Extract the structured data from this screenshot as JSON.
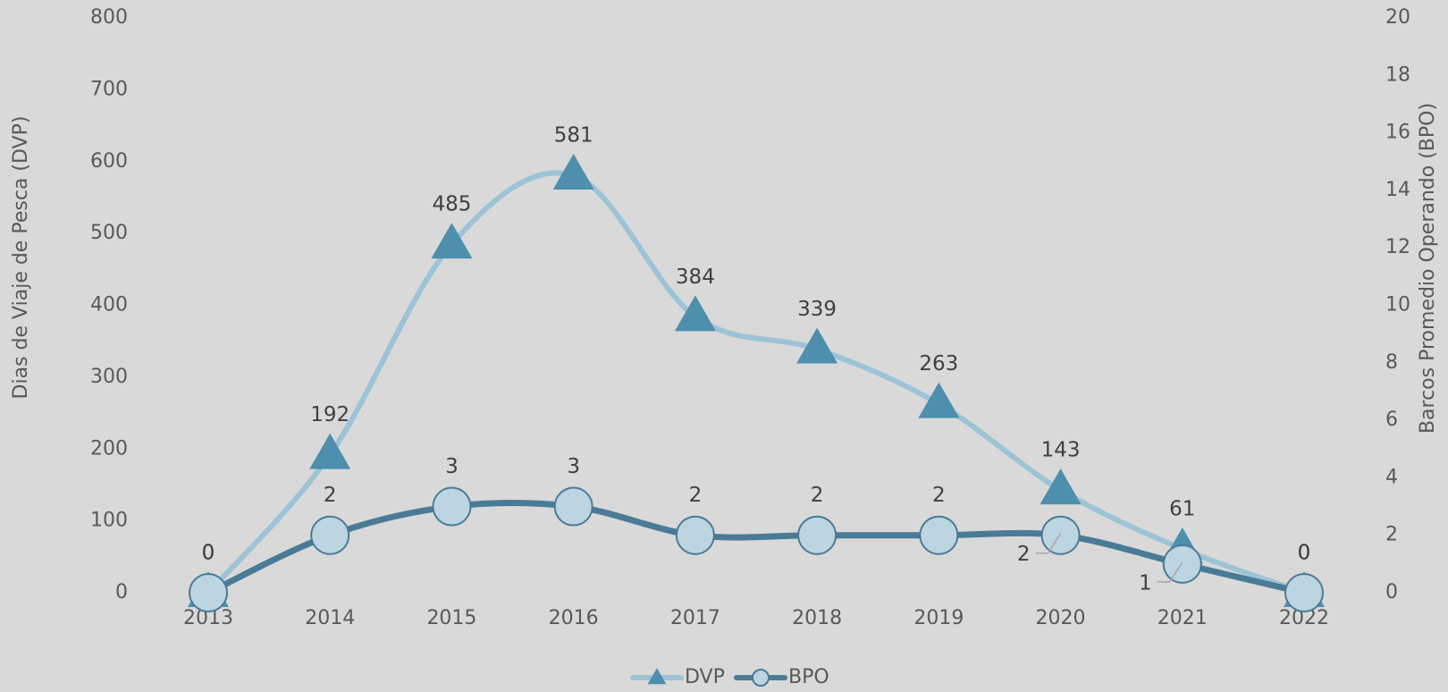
{
  "chart_data": {
    "type": "line",
    "categories": [
      "2013",
      "2014",
      "2015",
      "2016",
      "2017",
      "2018",
      "2019",
      "2020",
      "2021",
      "2022"
    ],
    "series": [
      {
        "name": "DVP",
        "color": "#9dc3d6",
        "marker_color": "#4d8fac",
        "marker": "triangle",
        "values": [
          0,
          192,
          485,
          581,
          384,
          339,
          263,
          143,
          61,
          0
        ]
      },
      {
        "name": "BPO",
        "color": "#4a7b96",
        "marker_color": "#bcd5e0",
        "marker": "circle",
        "axis": "y2",
        "values": [
          0,
          2,
          3,
          3,
          2,
          2,
          2,
          2,
          1,
          0
        ]
      }
    ],
    "ylabel": "Dias de Viaje de Pesca (DVP)",
    "y2label": "Barcos Promedio Operando (BPO)",
    "ylim": [
      0,
      800
    ],
    "yticks": [
      0,
      100,
      200,
      300,
      400,
      500,
      600,
      700,
      800
    ],
    "y2lim": [
      0,
      20
    ],
    "y2ticks": [
      0,
      2,
      4,
      6,
      8,
      10,
      12,
      14,
      16,
      18,
      20
    ],
    "legend": "bottom"
  }
}
